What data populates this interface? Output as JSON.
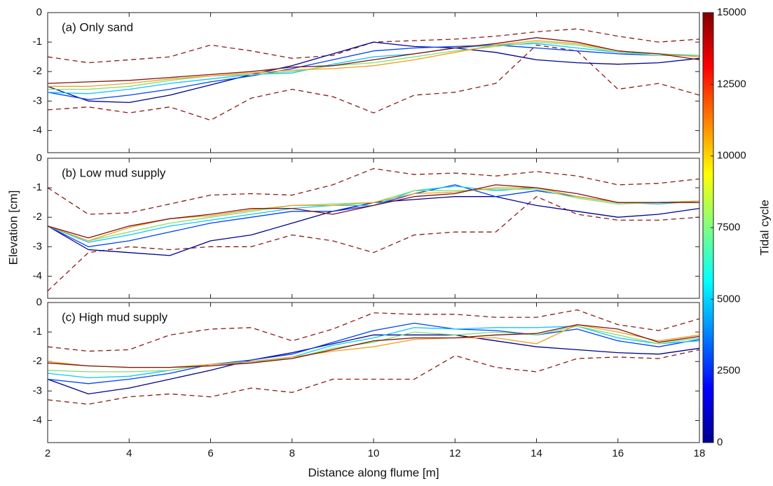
{
  "figure": {
    "xlabel": "Distance along flume [m]",
    "ylabel": "Elevation [cm]",
    "colorbar": {
      "label": "Tidal cycle",
      "colormap": "jet",
      "lim": [
        0,
        15000
      ],
      "ticks": [
        0,
        2500,
        5000,
        7500,
        10000,
        12500,
        15000
      ]
    }
  },
  "chart_data": [
    {
      "type": "line",
      "title": "(a) Only sand",
      "x": [
        2,
        3,
        4,
        5,
        6,
        7,
        8,
        9,
        10,
        11,
        12,
        13,
        14,
        15,
        16,
        17,
        18
      ],
      "xlim": [
        2,
        18
      ],
      "ylim": [
        -4.75,
        0
      ],
      "yticks": [
        0,
        -1,
        -2,
        -3,
        -4
      ],
      "series": [
        {
          "color": "#8b1a1a",
          "dashed": true,
          "values": [
            -1.5,
            -1.7,
            -1.6,
            -1.5,
            -1.1,
            -1.3,
            -1.55,
            -1.45,
            -1.0,
            -0.95,
            -0.9,
            -0.8,
            -0.65,
            -0.55,
            -0.8,
            -1.0,
            -0.9
          ]
        },
        {
          "color": "#8b1a1a",
          "dashed": true,
          "values": [
            -3.3,
            -3.2,
            -3.4,
            -3.2,
            -3.65,
            -2.9,
            -2.6,
            -2.85,
            -3.4,
            -2.8,
            -2.7,
            -2.4,
            -1.1,
            -1.3,
            -2.6,
            -2.4,
            -2.8
          ]
        },
        {
          "color": "#00008f",
          "values": [
            -2.5,
            -3.0,
            -3.05,
            -2.8,
            -2.45,
            -2.1,
            -1.8,
            -1.4,
            -1.0,
            -1.15,
            -1.2,
            -1.35,
            -1.6,
            -1.7,
            -1.75,
            -1.7,
            -1.55
          ]
        },
        {
          "color": "#0040ff",
          "values": [
            -2.7,
            -2.95,
            -2.8,
            -2.6,
            -2.35,
            -2.15,
            -1.9,
            -1.6,
            -1.3,
            -1.2,
            -1.15,
            -1.1,
            -1.2,
            -1.3,
            -1.4,
            -1.45,
            -1.45
          ]
        },
        {
          "color": "#10c8ff",
          "values": [
            -2.7,
            -2.75,
            -2.6,
            -2.4,
            -2.25,
            -2.1,
            -2.05,
            -1.75,
            -1.5,
            -1.4,
            -1.2,
            -1.1,
            -1.05,
            -1.2,
            -1.35,
            -1.4,
            -1.45
          ]
        },
        {
          "color": "#80e070",
          "values": [
            -2.6,
            -2.6,
            -2.5,
            -2.3,
            -2.15,
            -2.1,
            -2.0,
            -1.8,
            -1.7,
            -1.5,
            -1.3,
            -1.15,
            -1.0,
            -1.1,
            -1.35,
            -1.45,
            -1.45
          ]
        },
        {
          "color": "#f0a020",
          "values": [
            -2.5,
            -2.5,
            -2.4,
            -2.25,
            -2.15,
            -2.05,
            -1.95,
            -1.9,
            -1.8,
            -1.6,
            -1.35,
            -1.1,
            -0.95,
            -1.05,
            -1.3,
            -1.4,
            -1.5
          ]
        },
        {
          "color": "#7f1010",
          "values": [
            -2.4,
            -2.35,
            -2.3,
            -2.2,
            -2.1,
            -2.0,
            -1.85,
            -1.8,
            -1.6,
            -1.4,
            -1.2,
            -1.05,
            -0.85,
            -1.0,
            -1.3,
            -1.4,
            -1.6
          ]
        }
      ]
    },
    {
      "type": "line",
      "title": "(b) Low mud supply",
      "x": [
        2,
        3,
        4,
        5,
        6,
        7,
        8,
        9,
        10,
        11,
        12,
        13,
        14,
        15,
        16,
        17,
        18
      ],
      "xlim": [
        2,
        18
      ],
      "ylim": [
        -4.75,
        0
      ],
      "yticks": [
        0,
        -1,
        -2,
        -3,
        -4
      ],
      "series": [
        {
          "color": "#8b1a1a",
          "dashed": true,
          "values": [
            -1.0,
            -1.9,
            -1.85,
            -1.55,
            -1.25,
            -1.2,
            -1.25,
            -0.9,
            -0.35,
            -0.55,
            -0.5,
            -0.6,
            -0.45,
            -0.6,
            -0.9,
            -0.85,
            -0.7
          ]
        },
        {
          "color": "#8b1a1a",
          "dashed": true,
          "values": [
            -4.5,
            -3.2,
            -3.0,
            -3.1,
            -3.0,
            -3.0,
            -2.6,
            -2.8,
            -3.2,
            -2.6,
            -2.5,
            -2.5,
            -1.3,
            -1.9,
            -2.1,
            -2.1,
            -2.0
          ]
        },
        {
          "color": "#00008f",
          "values": [
            -2.3,
            -3.1,
            -3.2,
            -3.3,
            -2.8,
            -2.6,
            -2.2,
            -1.8,
            -1.5,
            -1.4,
            -1.3,
            -1.3,
            -1.6,
            -1.8,
            -2.0,
            -1.9,
            -1.7
          ]
        },
        {
          "color": "#0040ff",
          "values": [
            -2.3,
            -3.0,
            -2.8,
            -2.5,
            -2.2,
            -2.0,
            -1.8,
            -1.8,
            -1.6,
            -1.2,
            -0.9,
            -1.3,
            -1.1,
            -1.3,
            -1.5,
            -1.5,
            -1.45
          ]
        },
        {
          "color": "#10c8ff",
          "values": [
            -2.3,
            -2.85,
            -2.6,
            -2.3,
            -2.1,
            -1.9,
            -1.7,
            -1.6,
            -1.6,
            -1.1,
            -0.95,
            -1.1,
            -1.0,
            -1.3,
            -1.5,
            -1.55,
            -1.45
          ]
        },
        {
          "color": "#80e070",
          "values": [
            -2.3,
            -2.8,
            -2.5,
            -2.2,
            -2.0,
            -1.8,
            -1.6,
            -1.55,
            -1.5,
            -1.1,
            -1.1,
            -1.05,
            -1.05,
            -1.35,
            -1.55,
            -1.5,
            -1.45
          ]
        },
        {
          "color": "#f0a020",
          "values": [
            -2.3,
            -2.8,
            -2.35,
            -2.05,
            -1.95,
            -1.75,
            -1.6,
            -1.6,
            -1.5,
            -1.2,
            -1.15,
            -1.0,
            -1.0,
            -1.3,
            -1.5,
            -1.5,
            -1.45
          ]
        },
        {
          "color": "#7f1010",
          "values": [
            -2.3,
            -2.7,
            -2.3,
            -2.05,
            -1.9,
            -1.7,
            -1.7,
            -1.9,
            -1.6,
            -1.3,
            -1.2,
            -0.9,
            -1.0,
            -1.2,
            -1.5,
            -1.5,
            -1.5
          ]
        }
      ]
    },
    {
      "type": "line",
      "title": "(c) High mud supply",
      "x": [
        2,
        3,
        4,
        5,
        6,
        7,
        8,
        9,
        10,
        11,
        12,
        13,
        14,
        15,
        16,
        17,
        18
      ],
      "xlim": [
        2,
        18
      ],
      "ylim": [
        -4.75,
        0
      ],
      "yticks": [
        0,
        -1,
        -2,
        -3,
        -4
      ],
      "xticks": [
        2,
        4,
        6,
        8,
        10,
        12,
        14,
        16,
        18
      ],
      "series": [
        {
          "color": "#8b1a1a",
          "dashed": true,
          "values": [
            -1.5,
            -1.65,
            -1.6,
            -1.1,
            -0.9,
            -0.85,
            -1.3,
            -0.9,
            -0.35,
            -0.4,
            -0.4,
            -0.5,
            -0.5,
            -0.25,
            -0.75,
            -0.95,
            -0.55
          ]
        },
        {
          "color": "#8b1a1a",
          "dashed": true,
          "values": [
            -3.3,
            -3.45,
            -3.2,
            -3.1,
            -3.2,
            -2.9,
            -3.05,
            -2.6,
            -2.6,
            -2.6,
            -1.8,
            -2.2,
            -2.35,
            -1.9,
            -1.85,
            -1.9,
            -1.6
          ]
        },
        {
          "color": "#00008f",
          "values": [
            -2.6,
            -3.1,
            -2.9,
            -2.6,
            -2.3,
            -1.95,
            -1.7,
            -1.4,
            -1.1,
            -1.1,
            -1.1,
            -1.3,
            -1.5,
            -1.6,
            -1.7,
            -1.75,
            -1.55
          ]
        },
        {
          "color": "#0040ff",
          "values": [
            -2.6,
            -2.75,
            -2.6,
            -2.4,
            -2.1,
            -1.95,
            -1.75,
            -1.35,
            -0.95,
            -0.7,
            -0.9,
            -0.95,
            -1.1,
            -0.9,
            -1.3,
            -1.5,
            -1.25
          ]
        },
        {
          "color": "#10c8ff",
          "values": [
            -2.4,
            -2.55,
            -2.5,
            -2.3,
            -2.1,
            -2.05,
            -1.85,
            -1.45,
            -1.2,
            -0.85,
            -0.9,
            -0.85,
            -0.85,
            -0.8,
            -1.2,
            -1.4,
            -1.3
          ]
        },
        {
          "color": "#80e070",
          "values": [
            -2.3,
            -2.35,
            -2.35,
            -2.3,
            -2.1,
            -2.0,
            -1.9,
            -1.55,
            -1.35,
            -1.0,
            -1.1,
            -1.0,
            -1.1,
            -0.8,
            -1.1,
            -1.4,
            -1.2
          ]
        },
        {
          "color": "#f0a020",
          "values": [
            -2.0,
            -2.15,
            -2.2,
            -2.2,
            -2.1,
            -2.0,
            -1.85,
            -1.65,
            -1.5,
            -1.25,
            -1.2,
            -1.2,
            -1.4,
            -0.75,
            -1.0,
            -1.3,
            -1.1
          ]
        },
        {
          "color": "#7f1010",
          "values": [
            -2.05,
            -2.15,
            -2.2,
            -2.2,
            -2.15,
            -2.05,
            -1.9,
            -1.6,
            -1.3,
            -1.2,
            -1.2,
            -1.1,
            -1.05,
            -0.75,
            -0.9,
            -1.35,
            -1.15
          ]
        }
      ]
    }
  ]
}
